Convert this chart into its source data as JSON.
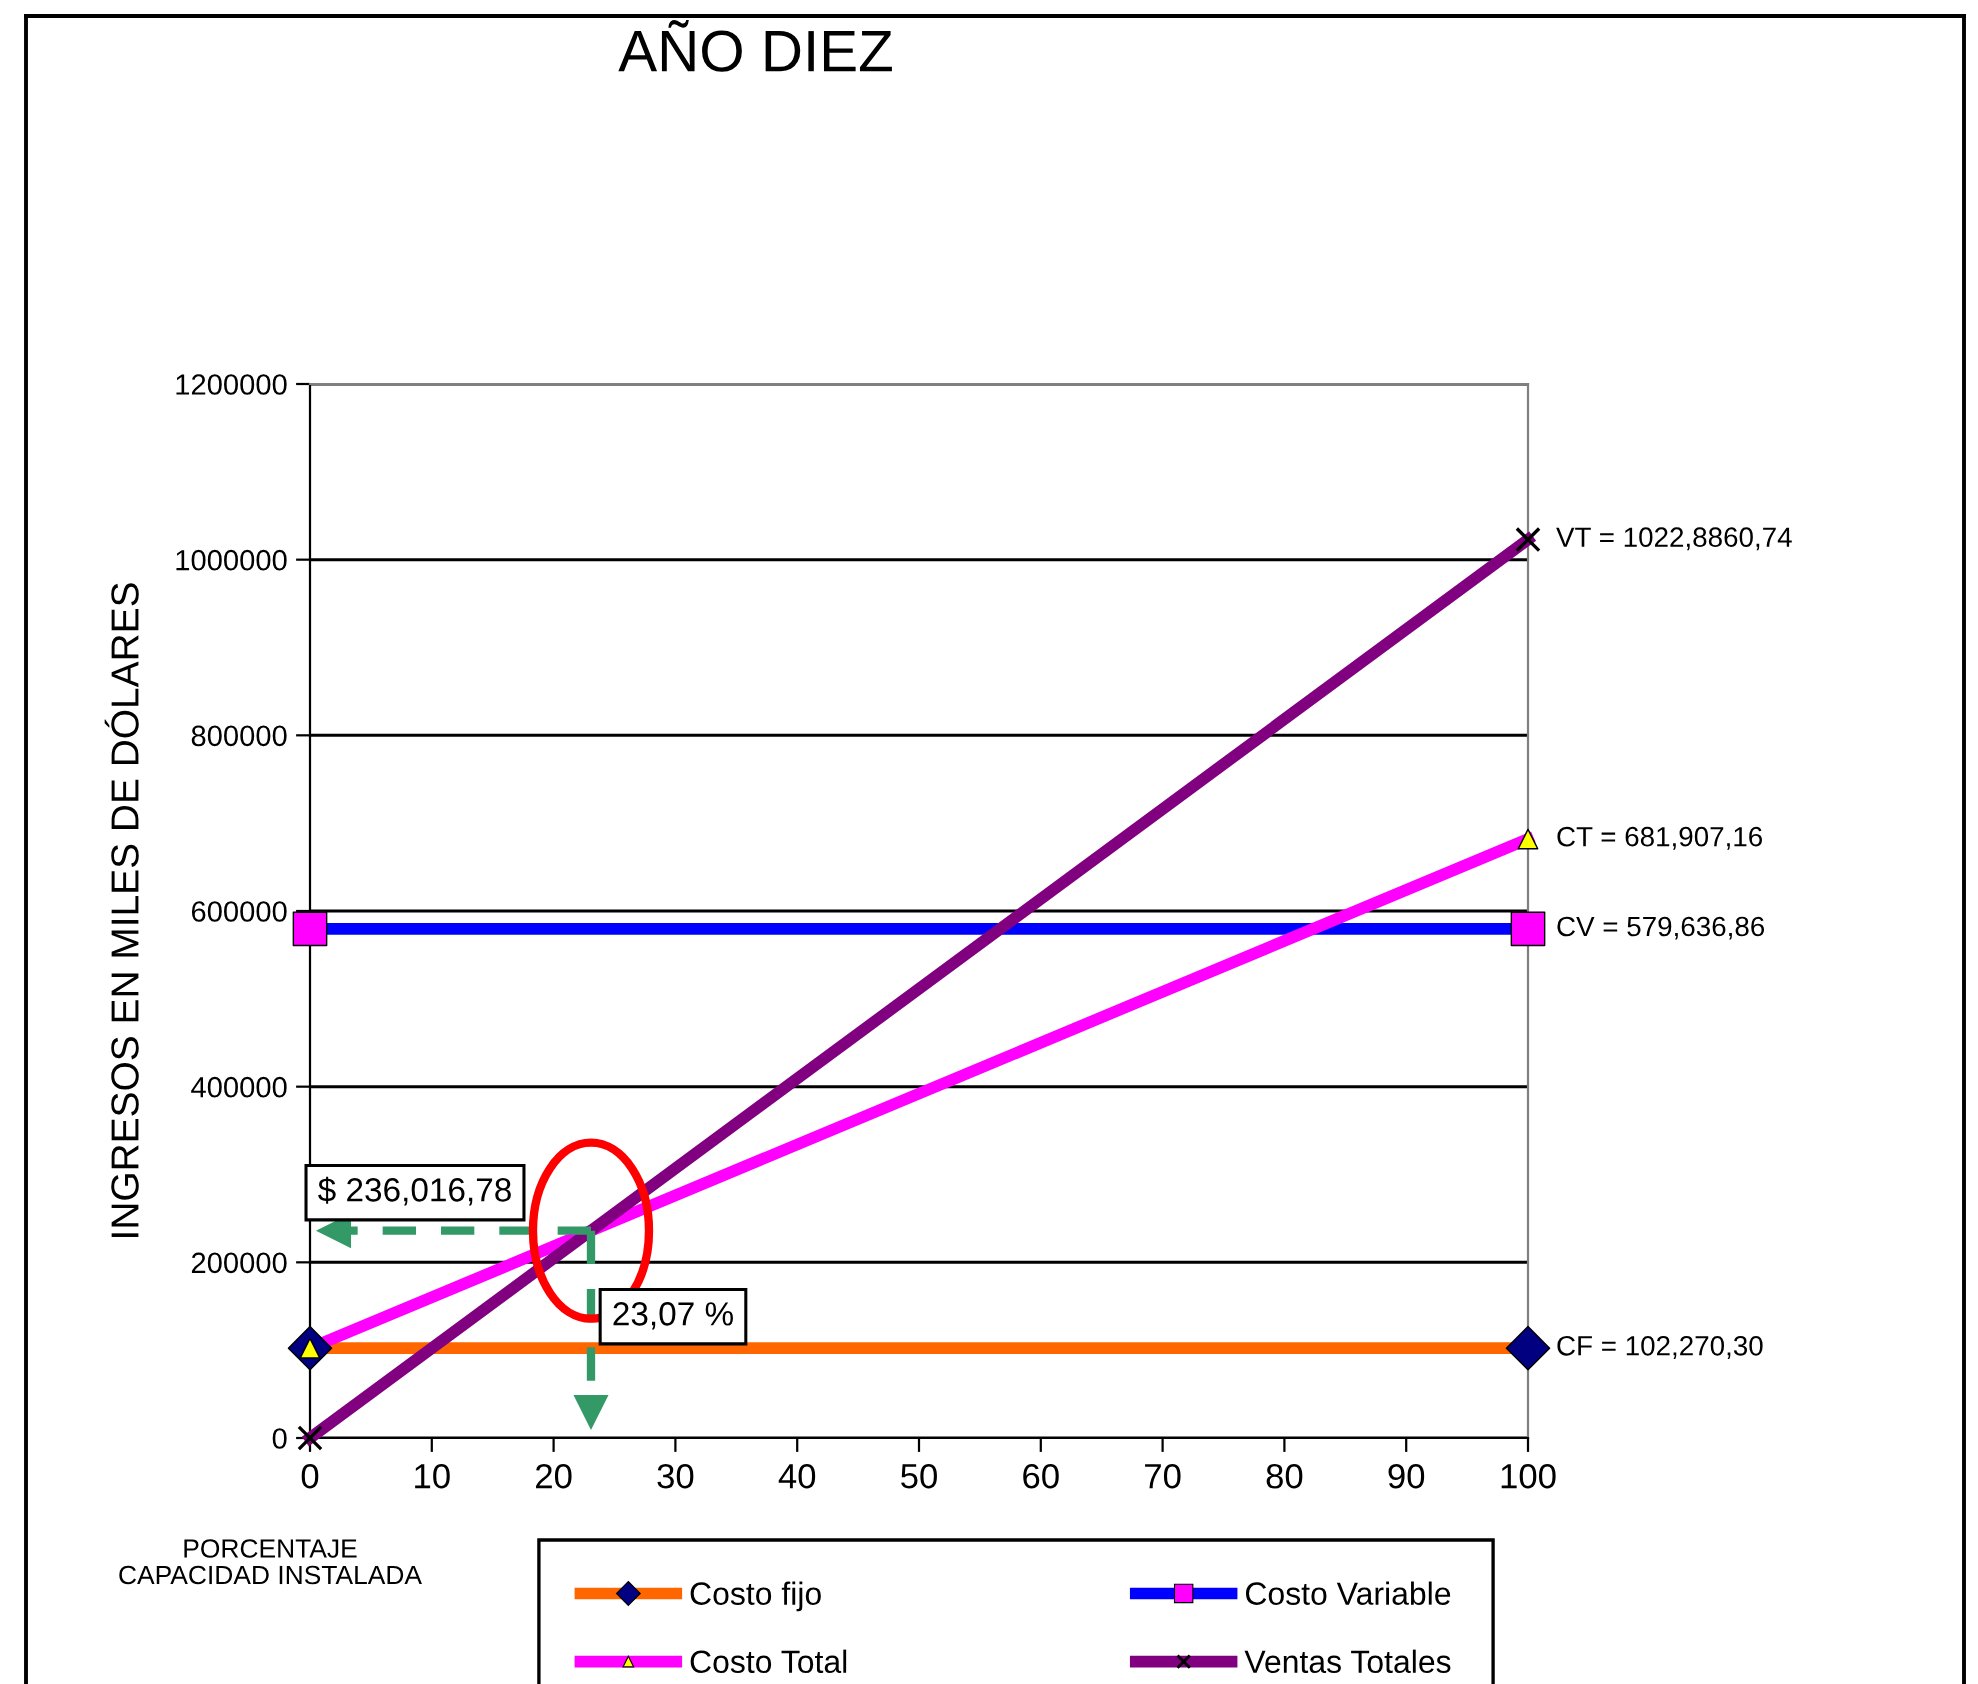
{
  "chart_data": {
    "type": "line",
    "title": "AÑO DIEZ",
    "xlabel": "PORCENTAJE\nCAPACIDAD INSTALADA",
    "ylabel": "INGRESOS EN MILES DE DÓLARES",
    "x": [
      0,
      100
    ],
    "xlim": [
      0,
      100
    ],
    "xticks": [
      0,
      10,
      20,
      30,
      40,
      50,
      60,
      70,
      80,
      90,
      100
    ],
    "ylim": [
      0,
      1200000
    ],
    "yticks": [
      0,
      200000,
      400000,
      600000,
      800000,
      1000000,
      1200000
    ],
    "grid": "y",
    "legend": "bottom",
    "line_style": "solid",
    "series": [
      {
        "name": "Costo fijo",
        "color": "#ff6600",
        "marker": "diamond",
        "colors": [
          "#000080",
          "#000080"
        ],
        "values": [
          102270.3,
          102270.3
        ],
        "value_labels": [
          null,
          "CF = 102,270,30"
        ]
      },
      {
        "name": "Costo Variable",
        "color": "#0000ff",
        "marker": "square",
        "colors": [
          "#ff00ff",
          "#ff00ff"
        ],
        "values": [
          579636.86,
          579636.86
        ],
        "value_labels": [
          null,
          "CV = 579,636,86"
        ]
      },
      {
        "name": "Costo Total",
        "color": "#ff00ff",
        "marker": "triangle",
        "colors": [
          "#ffff00",
          "#ffff00"
        ],
        "values": [
          102270.3,
          681907.16
        ],
        "value_labels": [
          null,
          "CT = 681,907,16"
        ]
      },
      {
        "name": "Ventas Totales",
        "color": "#800080",
        "marker": "cross",
        "colors": [
          "#000000",
          "#000000"
        ],
        "values": [
          0,
          1022886.74
        ],
        "value_labels": [
          null,
          "VT = 1022,8860,74"
        ]
      }
    ],
    "ref_lines": [
      {
        "axis": "y",
        "value": 236016.78,
        "label": "$ 236,016,78",
        "color": "#339966",
        "line_style": "dashed"
      },
      {
        "axis": "x",
        "value": 23.07,
        "label": "23,07 %",
        "color": "#339966",
        "line_style": "dashed"
      }
    ]
  }
}
